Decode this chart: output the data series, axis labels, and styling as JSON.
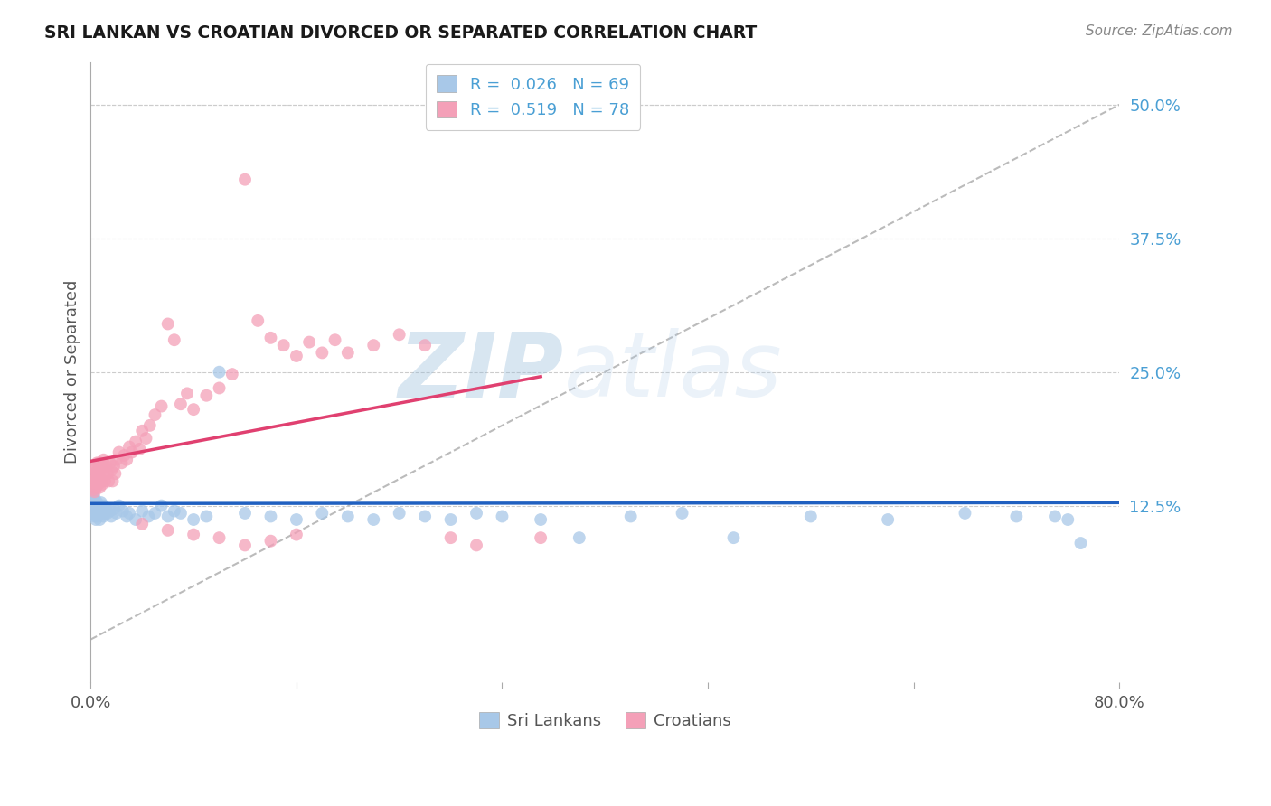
{
  "title": "SRI LANKAN VS CROATIAN DIVORCED OR SEPARATED CORRELATION CHART",
  "source_text": "Source: ZipAtlas.com",
  "ylabel": "Divorced or Separated",
  "xlim": [
    0.0,
    0.8
  ],
  "ylim": [
    -0.04,
    0.54
  ],
  "yticks": [
    0.125,
    0.25,
    0.375,
    0.5
  ],
  "ytick_labels": [
    "12.5%",
    "25.0%",
    "37.5%",
    "50.0%"
  ],
  "watermark_zip": "ZIP",
  "watermark_atlas": "atlas",
  "sri_lankan_color": "#a8c8e8",
  "croatian_color": "#f4a0b8",
  "sri_lankan_line_color": "#2060c0",
  "croatian_line_color": "#e04070",
  "gray_dashed_color": "#bbbbbb",
  "sri_lankan_R": 0.026,
  "sri_lankan_N": 69,
  "croatian_R": 0.519,
  "croatian_N": 78,
  "grid_color": "#cccccc",
  "background_color": "#ffffff",
  "sl_x": [
    0.001,
    0.001,
    0.002,
    0.002,
    0.002,
    0.003,
    0.003,
    0.003,
    0.003,
    0.004,
    0.004,
    0.004,
    0.005,
    0.005,
    0.005,
    0.006,
    0.006,
    0.007,
    0.007,
    0.008,
    0.008,
    0.009,
    0.01,
    0.01,
    0.011,
    0.012,
    0.013,
    0.015,
    0.016,
    0.018,
    0.02,
    0.022,
    0.025,
    0.028,
    0.03,
    0.035,
    0.04,
    0.045,
    0.05,
    0.055,
    0.06,
    0.065,
    0.07,
    0.08,
    0.09,
    0.1,
    0.12,
    0.14,
    0.16,
    0.18,
    0.2,
    0.22,
    0.24,
    0.26,
    0.28,
    0.3,
    0.32,
    0.35,
    0.38,
    0.42,
    0.46,
    0.5,
    0.56,
    0.62,
    0.68,
    0.72,
    0.75,
    0.76,
    0.77
  ],
  "sl_y": [
    0.135,
    0.128,
    0.122,
    0.13,
    0.118,
    0.125,
    0.12,
    0.115,
    0.132,
    0.118,
    0.125,
    0.112,
    0.128,
    0.12,
    0.115,
    0.122,
    0.118,
    0.125,
    0.112,
    0.118,
    0.128,
    0.12,
    0.125,
    0.115,
    0.118,
    0.122,
    0.118,
    0.12,
    0.115,
    0.122,
    0.118,
    0.125,
    0.12,
    0.115,
    0.118,
    0.112,
    0.12,
    0.115,
    0.118,
    0.125,
    0.115,
    0.12,
    0.118,
    0.112,
    0.115,
    0.25,
    0.118,
    0.115,
    0.112,
    0.118,
    0.115,
    0.112,
    0.118,
    0.115,
    0.112,
    0.118,
    0.115,
    0.112,
    0.095,
    0.115,
    0.118,
    0.095,
    0.115,
    0.112,
    0.118,
    0.115,
    0.115,
    0.112,
    0.09
  ],
  "cr_x": [
    0.001,
    0.001,
    0.002,
    0.002,
    0.002,
    0.003,
    0.003,
    0.003,
    0.004,
    0.004,
    0.004,
    0.005,
    0.005,
    0.005,
    0.006,
    0.006,
    0.007,
    0.007,
    0.007,
    0.008,
    0.008,
    0.009,
    0.009,
    0.01,
    0.01,
    0.011,
    0.012,
    0.013,
    0.014,
    0.015,
    0.016,
    0.017,
    0.018,
    0.019,
    0.02,
    0.022,
    0.024,
    0.026,
    0.028,
    0.03,
    0.032,
    0.035,
    0.038,
    0.04,
    0.043,
    0.046,
    0.05,
    0.055,
    0.06,
    0.065,
    0.07,
    0.075,
    0.08,
    0.09,
    0.1,
    0.11,
    0.12,
    0.13,
    0.14,
    0.15,
    0.16,
    0.17,
    0.18,
    0.19,
    0.2,
    0.22,
    0.24,
    0.26,
    0.28,
    0.3,
    0.35,
    0.04,
    0.06,
    0.08,
    0.1,
    0.12,
    0.14,
    0.16
  ],
  "cr_y": [
    0.145,
    0.155,
    0.148,
    0.16,
    0.14,
    0.155,
    0.145,
    0.138,
    0.15,
    0.16,
    0.142,
    0.155,
    0.148,
    0.165,
    0.145,
    0.158,
    0.152,
    0.165,
    0.142,
    0.158,
    0.148,
    0.162,
    0.145,
    0.155,
    0.168,
    0.148,
    0.162,
    0.155,
    0.148,
    0.165,
    0.158,
    0.148,
    0.162,
    0.155,
    0.168,
    0.175,
    0.165,
    0.172,
    0.168,
    0.18,
    0.175,
    0.185,
    0.178,
    0.195,
    0.188,
    0.2,
    0.21,
    0.218,
    0.295,
    0.28,
    0.22,
    0.23,
    0.215,
    0.228,
    0.235,
    0.248,
    0.43,
    0.298,
    0.282,
    0.275,
    0.265,
    0.278,
    0.268,
    0.28,
    0.268,
    0.275,
    0.285,
    0.275,
    0.095,
    0.088,
    0.095,
    0.108,
    0.102,
    0.098,
    0.095,
    0.088,
    0.092,
    0.098
  ]
}
